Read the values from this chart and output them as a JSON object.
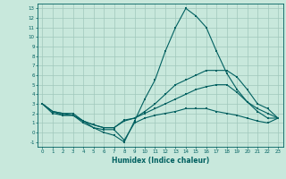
{
  "xlabel": "Humidex (Indice chaleur)",
  "xlim": [
    -0.5,
    23.5
  ],
  "ylim": [
    -1.5,
    13.5
  ],
  "yticks": [
    -1,
    0,
    1,
    2,
    3,
    4,
    5,
    6,
    7,
    8,
    9,
    10,
    11,
    12,
    13
  ],
  "xticks": [
    0,
    1,
    2,
    3,
    4,
    5,
    6,
    7,
    8,
    9,
    10,
    11,
    12,
    13,
    14,
    15,
    16,
    17,
    18,
    19,
    20,
    21,
    22,
    23
  ],
  "bg_color": "#c8e8dc",
  "grid_color": "#a0c8bc",
  "line_color": "#006060",
  "line1_x": [
    0,
    1,
    2,
    3,
    4,
    5,
    6,
    7,
    8,
    9,
    10,
    11,
    12,
    13,
    14,
    15,
    16,
    17,
    18,
    19,
    20,
    21,
    22,
    23
  ],
  "line1_y": [
    3.0,
    2.2,
    2.0,
    2.0,
    1.2,
    0.5,
    0.0,
    -0.3,
    -1.0,
    1.2,
    3.5,
    5.5,
    8.5,
    11.0,
    13.0,
    12.2,
    11.0,
    8.5,
    6.2,
    4.5,
    3.2,
    2.2,
    1.5,
    1.5
  ],
  "line2_x": [
    0,
    1,
    2,
    3,
    4,
    5,
    6,
    7,
    8,
    9,
    10,
    11,
    12,
    13,
    14,
    15,
    16,
    17,
    18,
    19,
    20,
    21,
    22,
    23
  ],
  "line2_y": [
    3.0,
    2.2,
    2.0,
    1.8,
    1.2,
    0.8,
    0.5,
    0.5,
    1.3,
    1.5,
    2.2,
    3.0,
    4.0,
    5.0,
    5.5,
    6.0,
    6.5,
    6.5,
    6.5,
    5.8,
    4.5,
    3.0,
    2.5,
    1.5
  ],
  "line3_x": [
    0,
    1,
    2,
    3,
    4,
    5,
    6,
    7,
    8,
    9,
    10,
    11,
    12,
    13,
    14,
    15,
    16,
    17,
    18,
    19,
    20,
    21,
    22,
    23
  ],
  "line3_y": [
    3.0,
    2.2,
    1.8,
    1.8,
    1.2,
    0.8,
    0.5,
    0.5,
    1.2,
    1.5,
    2.0,
    2.5,
    3.0,
    3.5,
    4.0,
    4.5,
    4.8,
    5.0,
    5.0,
    4.2,
    3.2,
    2.5,
    2.0,
    1.5
  ],
  "line4_x": [
    0,
    1,
    2,
    3,
    4,
    5,
    6,
    7,
    8,
    9,
    10,
    11,
    12,
    13,
    14,
    15,
    16,
    17,
    18,
    19,
    20,
    21,
    22,
    23
  ],
  "line4_y": [
    3.0,
    2.0,
    1.8,
    1.8,
    1.0,
    0.5,
    0.3,
    0.3,
    -0.8,
    1.0,
    1.5,
    1.8,
    2.0,
    2.2,
    2.5,
    2.5,
    2.5,
    2.2,
    2.0,
    1.8,
    1.5,
    1.2,
    1.0,
    1.5
  ]
}
